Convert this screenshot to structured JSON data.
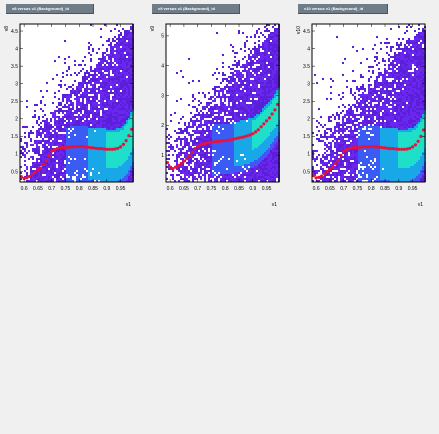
{
  "colors": {
    "background": "#f0f0f0",
    "frame": "#000000",
    "profile": "#e8123a",
    "title_box": "#6f7d88",
    "palette": [
      "#5a1fd8",
      "#6b27f0",
      "#3a5cf5",
      "#18a8e8",
      "#1ee0c8"
    ]
  },
  "chart_data": [
    {
      "type": "heatmap",
      "title": "v8 versus v1 (Background)_id",
      "xlabel": "v1",
      "ylabel": "v8",
      "xlim": [
        0.585,
        0.995
      ],
      "ylim": [
        0.2,
        4.7
      ],
      "xticks": [
        0.6,
        0.65,
        0.7,
        0.75,
        0.8,
        0.85,
        0.9,
        0.95
      ],
      "xtick_labels": [
        "0.6",
        "0.65",
        "0.7",
        "0.75",
        "0.8",
        "0.85",
        "0.9",
        "0.95"
      ],
      "yticks": [
        0.5,
        1,
        1.5,
        2,
        2.5,
        3,
        3.5,
        4,
        4.5
      ],
      "ytick_labels": [
        "0.5",
        "1",
        "1.5",
        "2",
        "2.5",
        "3",
        "3.5",
        "4",
        "4.5"
      ],
      "grid": false,
      "profile": {
        "name": "profile",
        "x": [
          0.59,
          0.6,
          0.61,
          0.62,
          0.63,
          0.64,
          0.65,
          0.66,
          0.67,
          0.68,
          0.69,
          0.7,
          0.71,
          0.72,
          0.73,
          0.74,
          0.75,
          0.76,
          0.77,
          0.78,
          0.79,
          0.8,
          0.81,
          0.82,
          0.83,
          0.84,
          0.85,
          0.86,
          0.87,
          0.88,
          0.89,
          0.9,
          0.91,
          0.92,
          0.93,
          0.94,
          0.95,
          0.96,
          0.97,
          0.98,
          0.99
        ],
        "y": [
          0.35,
          0.3,
          0.32,
          0.36,
          0.42,
          0.48,
          0.55,
          0.6,
          0.7,
          0.8,
          0.95,
          1.08,
          1.12,
          1.15,
          1.17,
          1.18,
          1.18,
          1.19,
          1.2,
          1.2,
          1.21,
          1.21,
          1.21,
          1.2,
          1.19,
          1.18,
          1.17,
          1.16,
          1.15,
          1.15,
          1.14,
          1.13,
          1.13,
          1.13,
          1.14,
          1.16,
          1.2,
          1.27,
          1.38,
          1.52,
          1.7
        ]
      }
    },
    {
      "type": "heatmap",
      "title": "v9 versus v1 (Background)_id",
      "xlabel": "v1",
      "ylabel": "v9",
      "xlim": [
        0.585,
        0.995
      ],
      "ylim": [
        0.1,
        5.4
      ],
      "xticks": [
        0.6,
        0.65,
        0.7,
        0.75,
        0.8,
        0.85,
        0.9,
        0.95
      ],
      "xtick_labels": [
        "0.6",
        "0.65",
        "0.7",
        "0.75",
        "0.8",
        "0.85",
        "0.9",
        "0.95"
      ],
      "yticks": [
        1,
        2,
        3,
        4,
        5
      ],
      "ytick_labels": [
        "1",
        "2",
        "3",
        "4",
        "5"
      ],
      "grid": false,
      "profile": {
        "name": "profile",
        "x": [
          0.59,
          0.6,
          0.61,
          0.62,
          0.63,
          0.64,
          0.65,
          0.66,
          0.67,
          0.68,
          0.69,
          0.7,
          0.71,
          0.72,
          0.73,
          0.74,
          0.75,
          0.76,
          0.77,
          0.78,
          0.79,
          0.8,
          0.81,
          0.82,
          0.83,
          0.84,
          0.85,
          0.86,
          0.87,
          0.88,
          0.89,
          0.9,
          0.91,
          0.92,
          0.93,
          0.94,
          0.95,
          0.96,
          0.97,
          0.98,
          0.99
        ],
        "y": [
          0.75,
          0.6,
          0.55,
          0.6,
          0.65,
          0.72,
          0.8,
          0.88,
          0.98,
          1.1,
          1.22,
          1.3,
          1.35,
          1.38,
          1.4,
          1.42,
          1.44,
          1.45,
          1.46,
          1.47,
          1.48,
          1.49,
          1.5,
          1.52,
          1.54,
          1.56,
          1.58,
          1.6,
          1.62,
          1.65,
          1.68,
          1.72,
          1.78,
          1.85,
          1.95,
          2.05,
          2.15,
          2.25,
          2.38,
          2.52,
          2.7
        ]
      }
    },
    {
      "type": "heatmap",
      "title": "v10 versus v1 (Background)_id",
      "xlabel": "v1",
      "ylabel": "v10",
      "xlim": [
        0.585,
        0.995
      ],
      "ylim": [
        0.2,
        4.7
      ],
      "xticks": [
        0.6,
        0.65,
        0.7,
        0.75,
        0.8,
        0.85,
        0.9,
        0.95
      ],
      "xtick_labels": [
        "0.6",
        "0.65",
        "0.7",
        "0.75",
        "0.8",
        "0.85",
        "0.9",
        "0.95"
      ],
      "yticks": [
        0.5,
        1,
        1.5,
        2,
        2.5,
        3,
        3.5,
        4,
        4.5
      ],
      "ytick_labels": [
        "0.5",
        "1",
        "1.5",
        "2",
        "2.5",
        "3",
        "3.5",
        "4",
        "4.5"
      ],
      "grid": false,
      "profile": {
        "name": "profile",
        "x": [
          0.59,
          0.6,
          0.61,
          0.62,
          0.63,
          0.64,
          0.65,
          0.66,
          0.67,
          0.68,
          0.69,
          0.7,
          0.71,
          0.72,
          0.73,
          0.74,
          0.75,
          0.76,
          0.77,
          0.78,
          0.79,
          0.8,
          0.81,
          0.82,
          0.83,
          0.84,
          0.85,
          0.86,
          0.87,
          0.88,
          0.89,
          0.9,
          0.91,
          0.92,
          0.93,
          0.94,
          0.95,
          0.96,
          0.97,
          0.98,
          0.99
        ],
        "y": [
          0.38,
          0.32,
          0.33,
          0.37,
          0.43,
          0.5,
          0.56,
          0.62,
          0.72,
          0.82,
          0.96,
          1.08,
          1.12,
          1.15,
          1.17,
          1.18,
          1.18,
          1.19,
          1.2,
          1.2,
          1.2,
          1.21,
          1.2,
          1.2,
          1.19,
          1.18,
          1.17,
          1.16,
          1.15,
          1.15,
          1.14,
          1.13,
          1.13,
          1.13,
          1.14,
          1.16,
          1.2,
          1.26,
          1.36,
          1.5,
          1.68
        ]
      }
    }
  ]
}
